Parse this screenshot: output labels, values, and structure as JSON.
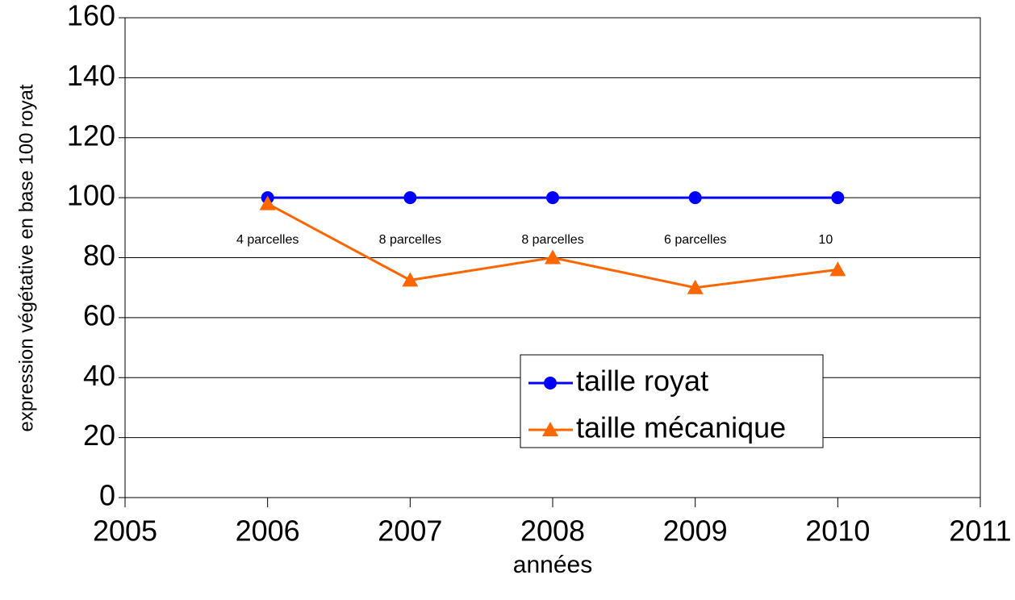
{
  "chart_data": {
    "type": "line",
    "x_label": "années",
    "y_label": "expression végétative en base 100 royat",
    "x": [
      2006,
      2007,
      2008,
      2009,
      2010
    ],
    "series": [
      {
        "name": "taille royat",
        "color": "#0000ff",
        "marker": "circle",
        "values": [
          100,
          100,
          100,
          100,
          100
        ]
      },
      {
        "name": "taille mécanique",
        "color": "#ff6600",
        "marker": "triangle",
        "values": [
          98,
          72.5,
          80,
          70,
          76
        ]
      }
    ],
    "annotations": [
      {
        "text": "4 parcelles",
        "x": 2006
      },
      {
        "text": "8 parcelles",
        "x": 2007
      },
      {
        "text": "8 parcelles",
        "x": 2008
      },
      {
        "text": "6 parcelles",
        "x": 2009
      },
      {
        "text": "10",
        "x": 2010
      }
    ],
    "xlim": [
      2005,
      2011
    ],
    "xticks": [
      2005,
      2006,
      2007,
      2008,
      2009,
      2010,
      2011
    ],
    "ylim": [
      0,
      160
    ],
    "yticks": [
      0,
      20,
      40,
      60,
      80,
      100,
      120,
      140,
      160
    ],
    "grid": true
  }
}
